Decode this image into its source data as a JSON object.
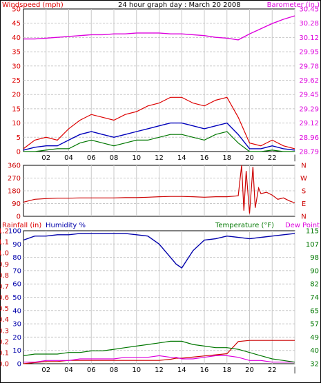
{
  "title": "24 hour graph day : March 20 2008",
  "colors": {
    "wind": "#dd0000",
    "avg_wind": "#0000bb",
    "wind_low": "#007700",
    "baro": "#dd00dd",
    "dir": "#cc0000",
    "humidity": "#0000aa",
    "temperature": "#007700",
    "dewpoint": "#dd00dd",
    "rain": "#cc0000",
    "grid": "#c8c8c8",
    "frame": "#000000"
  },
  "x_ticks": [
    "02",
    "04",
    "06",
    "08",
    "10",
    "12",
    "14",
    "16",
    "18",
    "20",
    "22",
    "|"
  ],
  "chart_data": [
    {
      "type": "line",
      "name": "wind-baro",
      "left_axis_label": "Windspeed (mph)",
      "right_axis_label": "Barometer (in.)",
      "left_ticks": [
        "50",
        "45",
        "40",
        "35",
        "30",
        "25",
        "20",
        "15",
        "10",
        "5",
        "0"
      ],
      "right_ticks": [
        "30.45",
        "30.28",
        "30.12",
        "29.95",
        "29.78",
        "29.62",
        "29.45",
        "29.29",
        "29.12",
        "28.96",
        "28.79"
      ],
      "ylim_left": [
        0,
        50
      ],
      "ylim_right": [
        28.79,
        30.45
      ],
      "x_hours": [
        0,
        1,
        2,
        3,
        4,
        5,
        6,
        7,
        8,
        9,
        10,
        11,
        12,
        13,
        14,
        15,
        16,
        17,
        18,
        19,
        20,
        21,
        22,
        23,
        24
      ],
      "series": [
        {
          "values": [
            1,
            4,
            5,
            4,
            8,
            11,
            13,
            12,
            11,
            13,
            14,
            16,
            17,
            19,
            19,
            17,
            16,
            18,
            19,
            12,
            3,
            2,
            4,
            2,
            1
          ]
        },
        {
          "values": [
            0.5,
            1.5,
            2,
            2,
            4,
            6,
            7,
            6,
            5,
            6,
            7,
            8,
            9,
            10,
            10,
            9,
            8,
            9,
            10,
            6,
            1,
            1,
            2,
            1,
            0.5
          ]
        },
        {
          "values": [
            0,
            0,
            0.5,
            1,
            1,
            3,
            4,
            3,
            2,
            3,
            4,
            4,
            5,
            6,
            6,
            5,
            4,
            6,
            7,
            3,
            0,
            0,
            0.5,
            0,
            0
          ]
        },
        {
          "values": [
            30.1,
            30.1,
            30.11,
            30.12,
            30.13,
            30.14,
            30.15,
            30.15,
            30.16,
            30.16,
            30.17,
            30.17,
            30.17,
            30.16,
            30.16,
            30.15,
            30.14,
            30.12,
            30.11,
            30.09,
            30.16,
            30.22,
            30.28,
            30.33,
            30.37
          ]
        }
      ]
    },
    {
      "type": "line",
      "name": "wind-direction",
      "left_ticks": [
        "360",
        "270",
        "180",
        "90",
        "0"
      ],
      "right_ticks": [
        "N",
        "W",
        "S",
        "E",
        "N"
      ],
      "ylim": [
        0,
        360
      ],
      "x_hours": [
        0,
        1,
        2,
        3,
        4,
        5,
        6,
        7,
        8,
        9,
        10,
        11,
        12,
        13,
        14,
        15,
        16,
        17,
        18,
        19,
        19.3,
        19.5,
        19.7,
        20,
        20.3,
        20.5,
        20.8,
        21,
        21.5,
        22,
        22.5,
        23,
        23.5,
        24
      ],
      "values": [
        100,
        120,
        125,
        128,
        128,
        130,
        130,
        130,
        130,
        132,
        132,
        135,
        138,
        140,
        140,
        138,
        135,
        138,
        138,
        145,
        360,
        40,
        320,
        20,
        350,
        60,
        200,
        160,
        170,
        150,
        120,
        130,
        110,
        95
      ]
    },
    {
      "type": "line",
      "name": "rain-humidity-temperature",
      "left_axis_label": "Rainfall (in)",
      "humidity_label": "Humidity %",
      "right_axis_label": "Temperature (°F)",
      "dewpoint_label": "Dew Point",
      "rain_ticks": [
        "1.2",
        "1.1",
        "1.0",
        "0.9",
        "0.8",
        "0.7",
        "0.6",
        "0.5",
        "0.4",
        "0.3",
        "0.2",
        "0.1",
        "0.0"
      ],
      "humidity_ticks": [
        "100",
        "90",
        "80",
        "70",
        "60",
        "50",
        "40",
        "30",
        "20",
        "10",
        "0"
      ],
      "temp_ticks": [
        "115",
        "107",
        "98",
        "90",
        "82",
        "74",
        "65",
        "57",
        "49",
        "40",
        "32"
      ],
      "ylim_humidity": [
        0,
        100
      ],
      "ylim_temp": [
        32,
        115
      ],
      "ylim_rain": [
        0,
        1.2
      ],
      "x_hours": [
        0,
        1,
        2,
        3,
        4,
        5,
        6,
        7,
        8,
        9,
        10,
        11,
        12,
        13,
        13.5,
        14,
        15,
        16,
        17,
        18,
        19,
        20,
        21,
        22,
        23,
        24
      ],
      "series": [
        {
          "values": [
            93,
            96,
            96,
            97,
            97,
            98,
            98,
            98,
            98,
            98,
            97,
            96,
            90,
            80,
            75,
            72,
            85,
            93,
            94,
            96,
            95,
            94,
            95,
            96,
            97,
            98
          ]
        },
        {
          "values": [
            37,
            38,
            38,
            38,
            39,
            39,
            40,
            40,
            41,
            42,
            43,
            44,
            45,
            46,
            46,
            46,
            44,
            43,
            42,
            42,
            41,
            39,
            37,
            35,
            34,
            33
          ]
        },
        {
          "values": [
            33,
            33,
            34,
            34,
            34,
            35,
            35,
            35,
            35,
            36,
            36,
            36,
            37,
            36,
            36,
            35,
            35,
            36,
            37,
            37,
            36,
            34,
            34,
            33,
            33,
            33
          ]
        },
        {
          "values": [
            0.0,
            0.01,
            0.02,
            0.02,
            0.03,
            0.03,
            0.03,
            0.03,
            0.03,
            0.03,
            0.03,
            0.03,
            0.03,
            0.04,
            0.05,
            0.05,
            0.06,
            0.07,
            0.08,
            0.09,
            0.2,
            0.21,
            0.21,
            0.21,
            0.21,
            0.21
          ]
        }
      ]
    }
  ]
}
